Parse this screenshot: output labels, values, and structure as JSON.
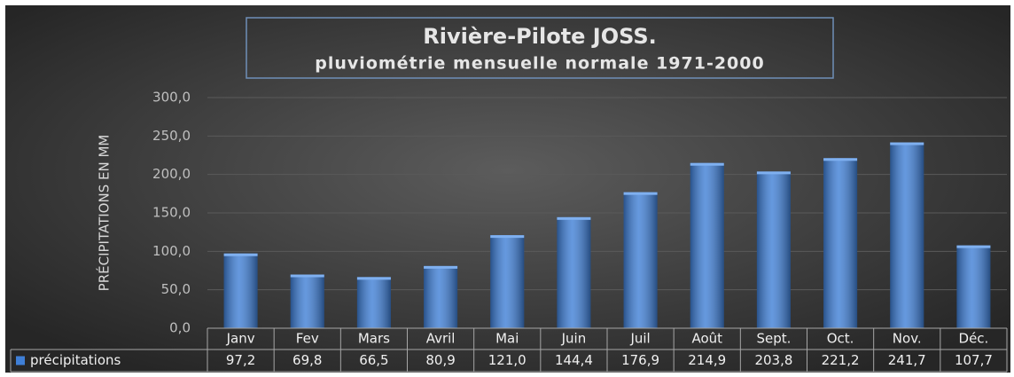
{
  "chart_data": {
    "type": "bar",
    "title": "Rivière-Pilote JOSS.",
    "subtitle": "pluviométrie mensuelle normale 1971-2000",
    "y_label": "PRÉCIPITATIONS EN MM",
    "categories": [
      "Janv",
      "Fev",
      "Mars",
      "Avril",
      "Mai",
      "Juin",
      "Juil",
      "Août",
      "Sept.",
      "Oct.",
      "Nov.",
      "Déc."
    ],
    "series": [
      {
        "name": "précipitations",
        "color": "#3f7fd6",
        "values": [
          97.2,
          69.8,
          66.5,
          80.9,
          121.0,
          144.4,
          176.9,
          214.9,
          203.8,
          221.2,
          241.7,
          107.7
        ],
        "value_labels": [
          "97,2",
          "69,8",
          "66,5",
          "80,9",
          "121,0",
          "144,4",
          "176,9",
          "214,9",
          "203,8",
          "221,2",
          "241,7",
          "107,7"
        ]
      }
    ],
    "ylim": [
      0,
      300
    ],
    "yticks": [
      {
        "value": 0,
        "label": "0,0"
      },
      {
        "value": 50,
        "label": "50,0"
      },
      {
        "value": 100,
        "label": "100,0"
      },
      {
        "value": 150,
        "label": "150,0"
      },
      {
        "value": 200,
        "label": "200,0"
      },
      {
        "value": 250,
        "label": "250,0"
      },
      {
        "value": 300,
        "label": "300,0"
      }
    ],
    "grid": true
  }
}
